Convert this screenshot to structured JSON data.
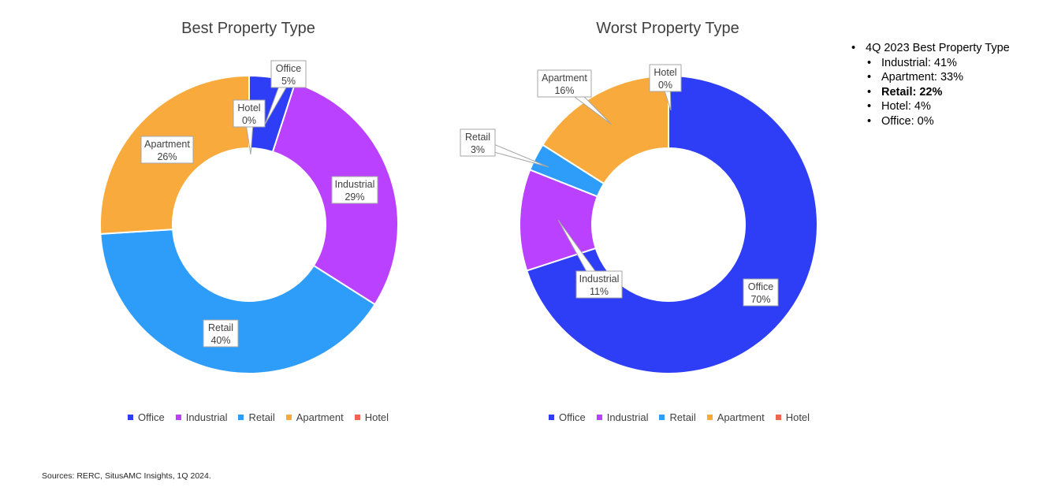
{
  "colors": {
    "Office": "#2e3df6",
    "Industrial": "#b941ff",
    "Retail": "#2d9df9",
    "Apartment": "#f8ab3c",
    "Hotel": "#f26551"
  },
  "chart_data": [
    {
      "type": "pie",
      "title": "Best Property Type",
      "categories": [
        "Office",
        "Industrial",
        "Retail",
        "Apartment",
        "Hotel"
      ],
      "values": [
        5,
        29,
        40,
        26,
        0
      ],
      "labels": {
        "Office": [
          "Office",
          "5%"
        ],
        "Industrial": [
          "Industrial",
          "29%"
        ],
        "Retail": [
          "Retail",
          "40%"
        ],
        "Apartment": [
          "Apartment",
          "26%"
        ],
        "Hotel": [
          "Hotel",
          "0%"
        ]
      },
      "legend": [
        "Office",
        "Industrial",
        "Retail",
        "Apartment",
        "Hotel"
      ],
      "legend_position": "bottom"
    },
    {
      "type": "pie",
      "title": "Worst Property Type",
      "categories": [
        "Office",
        "Industrial",
        "Retail",
        "Apartment",
        "Hotel"
      ],
      "values": [
        70,
        11,
        3,
        16,
        0
      ],
      "labels": {
        "Office": [
          "Office",
          "70%"
        ],
        "Industrial": [
          "Industrial",
          "11%"
        ],
        "Retail": [
          "Retail",
          "3%"
        ],
        "Apartment": [
          "Apartment",
          "16%"
        ],
        "Hotel": [
          "Hotel",
          "0%"
        ]
      },
      "legend": [
        "Office",
        "Industrial",
        "Retail",
        "Apartment",
        "Hotel"
      ],
      "legend_position": "bottom"
    }
  ],
  "notes": {
    "heading": "4Q 2023 Best Property Type",
    "items": [
      {
        "text": "Industrial: 41%",
        "bold": false
      },
      {
        "text": "Apartment: 33%",
        "bold": false
      },
      {
        "text": "Retail: 22%",
        "bold": true
      },
      {
        "text": "Hotel: 4%",
        "bold": false
      },
      {
        "text": "Office: 0%",
        "bold": false
      }
    ]
  },
  "source": "Sources: RERC, SitusAMC Insights, 1Q 2024."
}
